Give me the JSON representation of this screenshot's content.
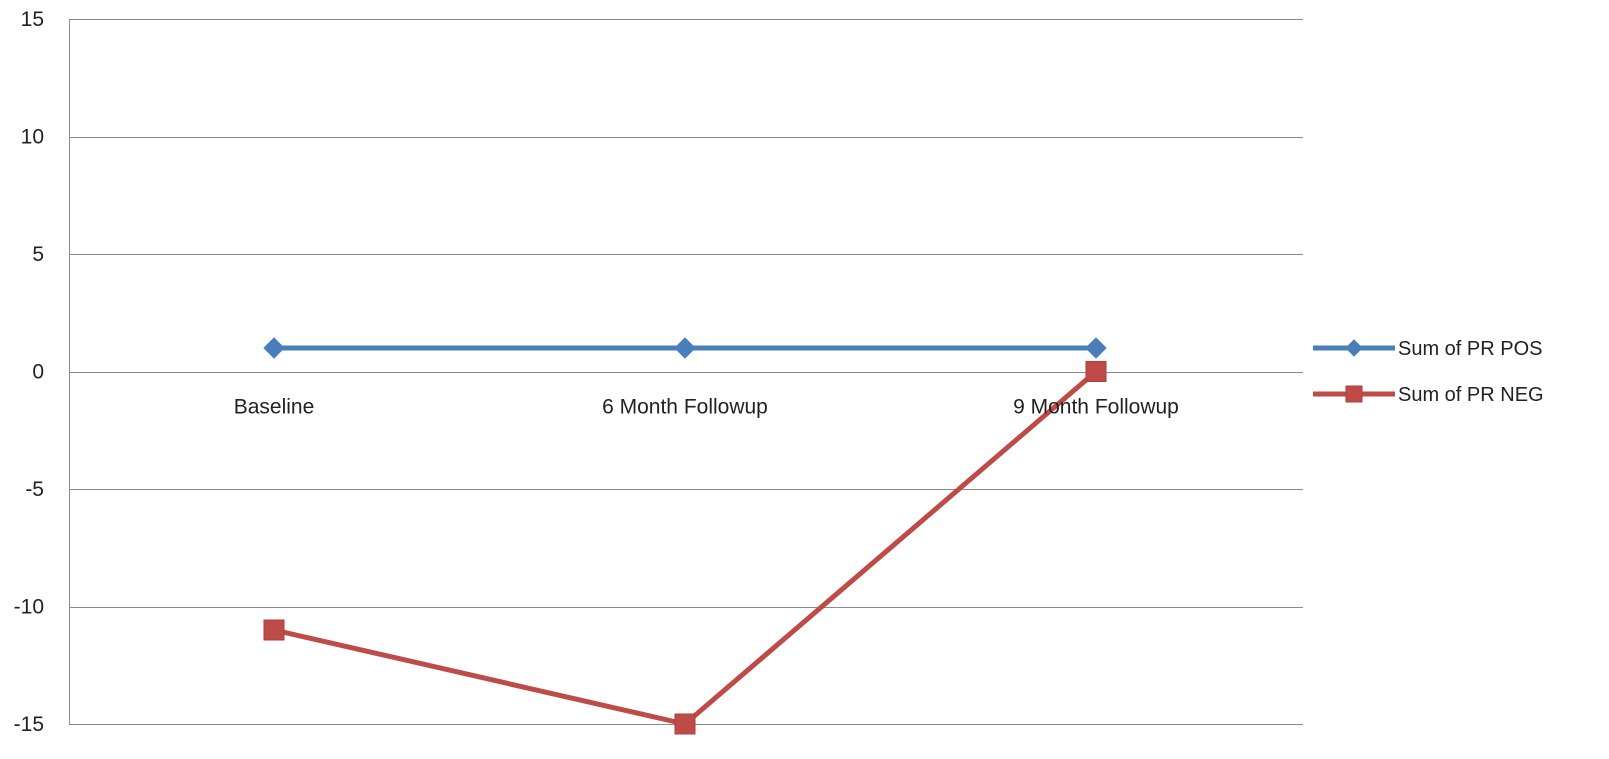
{
  "chart_data": {
    "type": "line",
    "title": "",
    "xlabel": "",
    "ylabel": "",
    "categories": [
      "Baseline",
      "6 Month Followup",
      "9 Month Followup"
    ],
    "ylim": [
      -15,
      15
    ],
    "yticks": [
      15,
      10,
      5,
      0,
      -5,
      -10,
      -15
    ],
    "grid": true,
    "legend_position": "right",
    "series": [
      {
        "name": "Sum of PR POS",
        "values": [
          1,
          1,
          1
        ],
        "color": "#4a7ebb",
        "marker": "diamond"
      },
      {
        "name": "Sum of PR NEG",
        "values": [
          -11,
          -15,
          0
        ],
        "color": "#be4b48",
        "marker": "square"
      }
    ]
  }
}
